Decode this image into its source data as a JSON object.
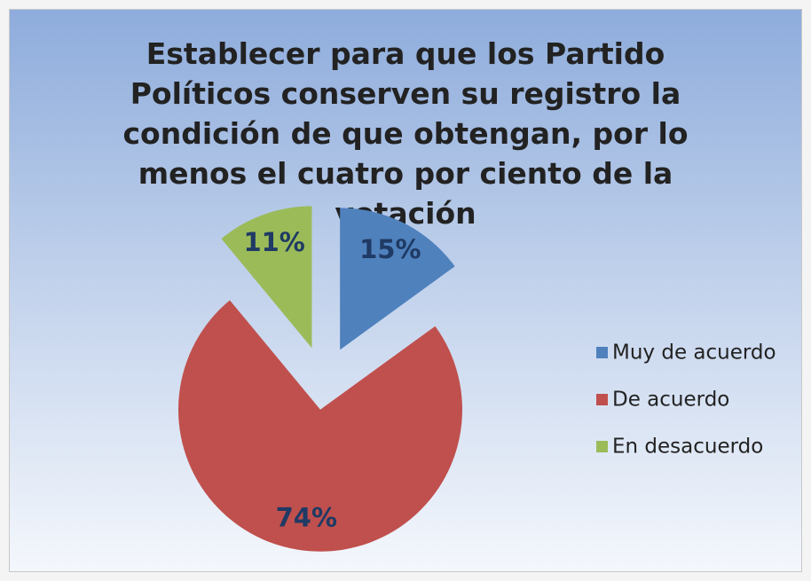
{
  "chart_data": {
    "type": "pie",
    "title": "Establecer para que los Partido Políticos conserven su registro la condición de que obtengan, por lo menos el cuatro por ciento de la votación",
    "categories": [
      "Muy de acuerdo",
      "De acuerdo",
      "En desacuerdo"
    ],
    "values": [
      15,
      74,
      11
    ],
    "value_labels": [
      "15%",
      "74%",
      "11%"
    ],
    "colors": [
      "#4f81bd",
      "#c0504d",
      "#9bbb59"
    ],
    "legend": "right"
  }
}
